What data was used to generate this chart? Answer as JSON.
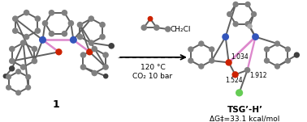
{
  "background_color": "#ffffff",
  "fig_width": 3.78,
  "fig_height": 1.51,
  "dpi": 100,
  "label_1": "1",
  "arrow_text_line1": "CH₂Cl",
  "arrow_text_line2": "120 °C",
  "arrow_text_line3": "CO₂ 10 bar",
  "tsg_label": "TSG’-H’",
  "tsg_dG": "ΔG‡=33.1 kcal/mol",
  "bond_label_1": "1.034",
  "bond_label_2": "1.912",
  "bond_label_3": "1.524",
  "atom_color_gray": "#808080",
  "atom_color_blue": "#3355bb",
  "atom_color_red": "#cc2200",
  "atom_color_pink": "#dd88cc",
  "atom_color_green": "#66cc55",
  "atom_color_dark": "#404040",
  "bond_color": "#606060",
  "bond_lw": 1.4
}
